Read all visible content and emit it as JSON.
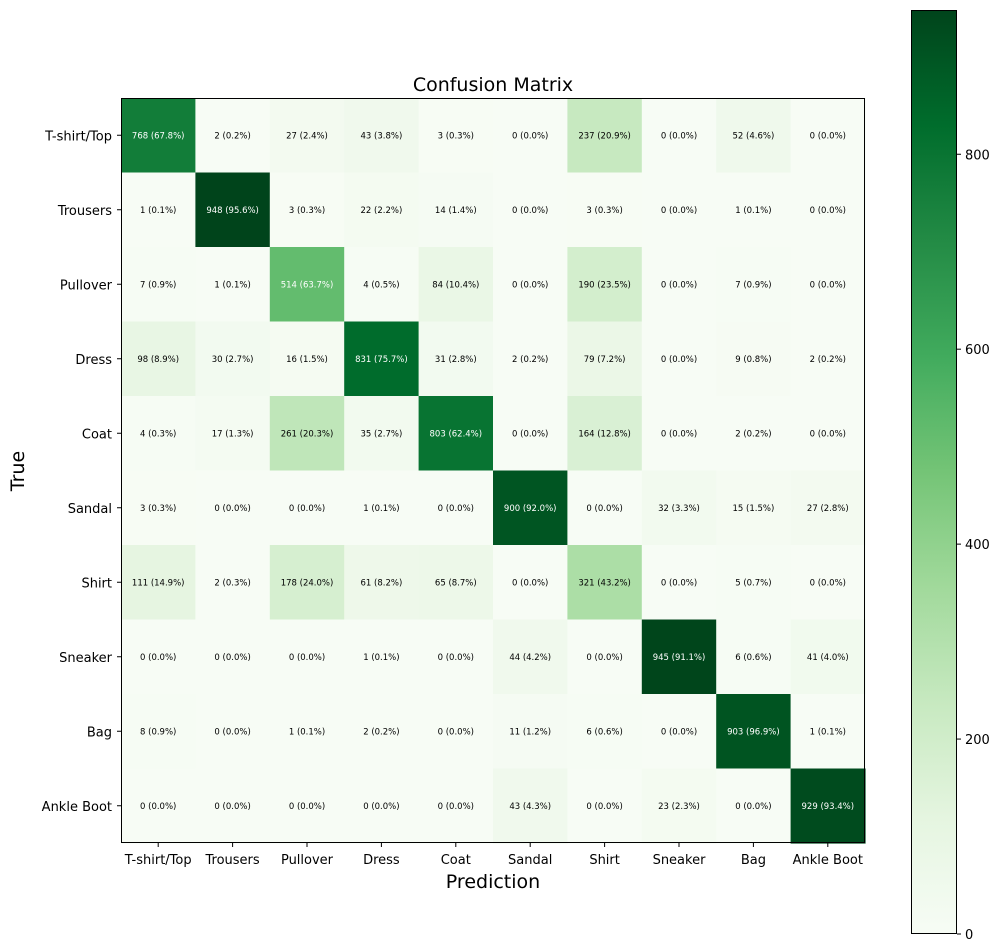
{
  "chart_data": {
    "type": "heatmap",
    "title": "Confusion Matrix",
    "xlabel": "Prediction",
    "ylabel": "True",
    "x_categories": [
      "T-shirt/Top",
      "Trousers",
      "Pullover",
      "Dress",
      "Coat",
      "Sandal",
      "Shirt",
      "Sneaker",
      "Bag",
      "Ankle Boot"
    ],
    "y_categories": [
      "T-shirt/Top",
      "Trousers",
      "Pullover",
      "Dress",
      "Coat",
      "Sandal",
      "Shirt",
      "Sneaker",
      "Bag",
      "Ankle Boot"
    ],
    "values": [
      [
        768,
        2,
        27,
        43,
        3,
        0,
        237,
        0,
        52,
        0
      ],
      [
        1,
        948,
        3,
        22,
        14,
        0,
        3,
        0,
        1,
        0
      ],
      [
        7,
        1,
        514,
        4,
        84,
        0,
        190,
        0,
        7,
        0
      ],
      [
        98,
        30,
        16,
        831,
        31,
        2,
        79,
        0,
        9,
        2
      ],
      [
        4,
        17,
        261,
        35,
        803,
        0,
        164,
        0,
        2,
        0
      ],
      [
        3,
        0,
        0,
        1,
        0,
        900,
        0,
        32,
        15,
        27
      ],
      [
        111,
        2,
        178,
        61,
        65,
        0,
        321,
        0,
        5,
        0
      ],
      [
        0,
        0,
        0,
        1,
        0,
        44,
        0,
        945,
        6,
        41
      ],
      [
        8,
        0,
        1,
        2,
        0,
        11,
        6,
        0,
        903,
        1
      ],
      [
        0,
        0,
        0,
        0,
        0,
        43,
        0,
        23,
        0,
        929
      ]
    ],
    "cell_labels": [
      [
        "768 (67.8%)",
        "2 (0.2%)",
        "27 (2.4%)",
        "43 (3.8%)",
        "3 (0.3%)",
        "0 (0.0%)",
        "237 (20.9%)",
        "0 (0.0%)",
        "52 (4.6%)",
        "0 (0.0%)"
      ],
      [
        "1 (0.1%)",
        "948 (95.6%)",
        "3 (0.3%)",
        "22 (2.2%)",
        "14 (1.4%)",
        "0 (0.0%)",
        "3 (0.3%)",
        "0 (0.0%)",
        "1 (0.1%)",
        "0 (0.0%)"
      ],
      [
        "7 (0.9%)",
        "1 (0.1%)",
        "514 (63.7%)",
        "4 (0.5%)",
        "84 (10.4%)",
        "0 (0.0%)",
        "190 (23.5%)",
        "0 (0.0%)",
        "7 (0.9%)",
        "0 (0.0%)"
      ],
      [
        "98 (8.9%)",
        "30 (2.7%)",
        "16 (1.5%)",
        "831 (75.7%)",
        "31 (2.8%)",
        "2 (0.2%)",
        "79 (7.2%)",
        "0 (0.0%)",
        "9 (0.8%)",
        "2 (0.2%)"
      ],
      [
        "4 (0.3%)",
        "17 (1.3%)",
        "261 (20.3%)",
        "35 (2.7%)",
        "803 (62.4%)",
        "0 (0.0%)",
        "164 (12.8%)",
        "0 (0.0%)",
        "2 (0.2%)",
        "0 (0.0%)"
      ],
      [
        "3 (0.3%)",
        "0 (0.0%)",
        "0 (0.0%)",
        "1 (0.1%)",
        "0 (0.0%)",
        "900 (92.0%)",
        "0 (0.0%)",
        "32 (3.3%)",
        "15 (1.5%)",
        "27 (2.8%)"
      ],
      [
        "111 (14.9%)",
        "2 (0.3%)",
        "178 (24.0%)",
        "61 (8.2%)",
        "65 (8.7%)",
        "0 (0.0%)",
        "321 (43.2%)",
        "0 (0.0%)",
        "5 (0.7%)",
        "0 (0.0%)"
      ],
      [
        "0 (0.0%)",
        "0 (0.0%)",
        "0 (0.0%)",
        "1 (0.1%)",
        "0 (0.0%)",
        "44 (4.2%)",
        "0 (0.0%)",
        "945 (91.1%)",
        "6 (0.6%)",
        "41 (4.0%)"
      ],
      [
        "8 (0.9%)",
        "0 (0.0%)",
        "1 (0.1%)",
        "2 (0.2%)",
        "0 (0.0%)",
        "11 (1.2%)",
        "6 (0.6%)",
        "0 (0.0%)",
        "903 (96.9%)",
        "1 (0.1%)"
      ],
      [
        "0 (0.0%)",
        "0 (0.0%)",
        "0 (0.0%)",
        "0 (0.0%)",
        "0 (0.0%)",
        "43 (4.3%)",
        "0 (0.0%)",
        "23 (2.3%)",
        "0 (0.0%)",
        "929 (93.4%)"
      ]
    ],
    "colormap": "Greens",
    "color_range": [
      0,
      948
    ],
    "colorbar_ticks": [
      0,
      200,
      400,
      600,
      800
    ],
    "colorbar_tick_labels": [
      "0",
      "200",
      "400",
      "600",
      "800"
    ],
    "grid": false,
    "legend": "colorbar-right"
  }
}
